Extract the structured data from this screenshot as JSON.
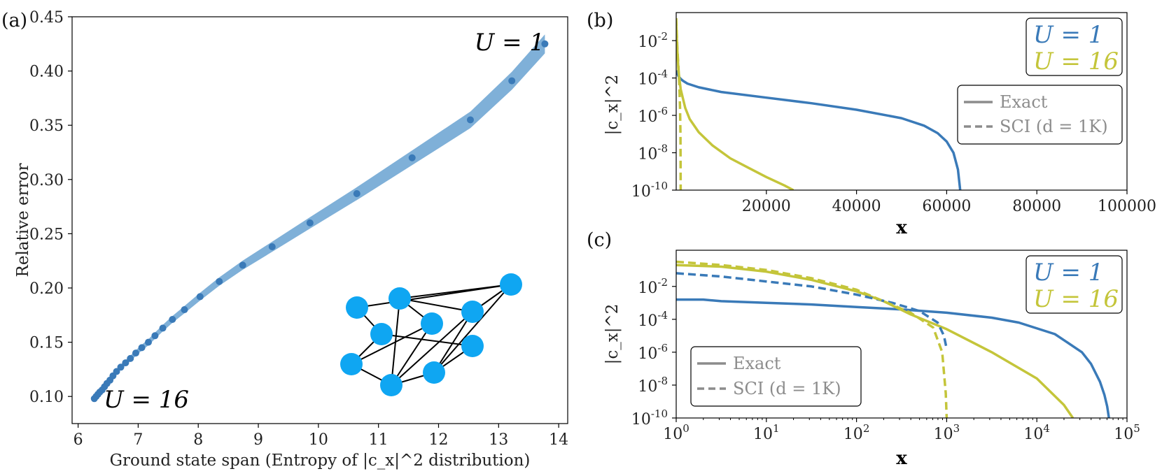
{
  "colors": {
    "u1": "#3a7ab8",
    "u16": "#c4c53a",
    "band": "#7fb0d8",
    "legend_gray": "#8c8c8c",
    "node": "#0fa6f2"
  },
  "chart_data": [
    {
      "panel": "(a)",
      "type": "scatter",
      "xlabel": "Ground state span (Entropy of |c_x|^2 distribution)",
      "ylabel": "Relative error",
      "xlim": [
        5.9,
        14.15
      ],
      "ylim": [
        0.075,
        0.45
      ],
      "xticks": [
        6,
        7,
        8,
        9,
        10,
        11,
        12,
        13,
        14
      ],
      "yticks": [
        0.1,
        0.15,
        0.2,
        0.25,
        0.3,
        0.35,
        0.4,
        0.45
      ],
      "ytick_labels": [
        "0.10",
        "0.15",
        "0.20",
        "0.25",
        "0.30",
        "0.35",
        "0.40",
        "0.45"
      ],
      "series": [
        {
          "name": "Relative error",
          "x": [
            6.27,
            6.3,
            6.33,
            6.36,
            6.4,
            6.44,
            6.48,
            6.53,
            6.58,
            6.64,
            6.71,
            6.79,
            6.87,
            6.96,
            7.06,
            7.17,
            7.28,
            7.41,
            7.57,
            7.77,
            8.03,
            8.35,
            8.74,
            9.23,
            9.86,
            10.64,
            11.56,
            12.53,
            13.22,
            13.77
          ],
          "y": [
            0.098,
            0.1,
            0.102,
            0.104,
            0.106,
            0.109,
            0.112,
            0.115,
            0.119,
            0.123,
            0.127,
            0.131,
            0.135,
            0.14,
            0.145,
            0.15,
            0.156,
            0.163,
            0.171,
            0.18,
            0.192,
            0.206,
            0.221,
            0.238,
            0.26,
            0.287,
            0.32,
            0.355,
            0.391,
            0.425
          ]
        }
      ],
      "annotations": {
        "u1": "U = 1",
        "u16": "U = 16"
      }
    },
    {
      "panel": "(b)",
      "type": "line",
      "xlabel": "x",
      "ylabel": "|c_x|^2",
      "xlim": [
        0,
        100000
      ],
      "ylim_log10": [
        -10,
        -0.5
      ],
      "xticks": [
        20000,
        40000,
        60000,
        80000,
        100000
      ],
      "xtick_labels": [
        "20000",
        "40000",
        "60000",
        "80000",
        "100000"
      ],
      "ytick_exponents": [
        -2,
        -4,
        -6,
        -8,
        -10
      ],
      "series": [
        {
          "name": "U = 1 Exact",
          "style": "solid",
          "x": [
            0,
            500,
            1000,
            1500,
            2500,
            5000,
            10000,
            20000,
            30000,
            40000,
            50000,
            55000,
            58000,
            60000,
            61500,
            62500,
            63000
          ],
          "log10y": [
            -3.6,
            -3.9,
            -4.05,
            -4.15,
            -4.3,
            -4.5,
            -4.75,
            -5.05,
            -5.35,
            -5.7,
            -6.15,
            -6.55,
            -6.95,
            -7.4,
            -8.0,
            -8.9,
            -10
          ]
        },
        {
          "name": "U = 16 Exact",
          "style": "solid",
          "x": [
            0,
            200,
            500,
            1000,
            2000,
            3000,
            5000,
            8000,
            12000,
            16000,
            20000,
            24000,
            26000
          ],
          "log10y": [
            -1.0,
            -2.3,
            -3.6,
            -4.6,
            -5.6,
            -6.2,
            -6.9,
            -7.6,
            -8.3,
            -8.8,
            -9.3,
            -9.75,
            -10
          ]
        },
        {
          "name": "U = 16 SCI (d = 1K)",
          "style": "dashed",
          "x": [
            0,
            150,
            300,
            500,
            700,
            850,
            950,
            1000
          ],
          "log10y": [
            -0.8,
            -1.8,
            -2.6,
            -3.4,
            -4.4,
            -5.6,
            -7.0,
            -10
          ]
        }
      ],
      "legend_u": [
        "U = 1",
        "U = 16"
      ],
      "legend_style": [
        "Exact",
        "SCI (d = 1K)"
      ]
    },
    {
      "panel": "(c)",
      "type": "line",
      "xscale": "log",
      "xlabel": "x",
      "ylabel": "|c_x|^2",
      "xlim_log10": [
        0,
        5
      ],
      "ylim_log10": [
        -10,
        0.2
      ],
      "xtick_exponents": [
        0,
        1,
        2,
        3,
        4,
        5
      ],
      "ytick_exponents": [
        -2,
        -4,
        -6,
        -8,
        -10
      ],
      "series": [
        {
          "name": "U = 1 Exact",
          "style": "solid",
          "lx": [
            0,
            0.3,
            0.5,
            1,
            1.5,
            2,
            2.5,
            3,
            3.5,
            3.8,
            4.2,
            4.5,
            4.6,
            4.7,
            4.75,
            4.78,
            4.8
          ],
          "ly": [
            -2.8,
            -2.8,
            -2.9,
            -3.0,
            -3.1,
            -3.25,
            -3.4,
            -3.6,
            -3.9,
            -4.2,
            -4.9,
            -6.0,
            -6.7,
            -7.8,
            -8.6,
            -9.3,
            -10
          ]
        },
        {
          "name": "U = 16 Exact",
          "style": "solid",
          "lx": [
            0,
            0.5,
            1,
            1.5,
            2,
            2.3,
            2.6,
            3,
            3.5,
            4,
            4.3,
            4.4
          ],
          "ly": [
            -0.7,
            -0.8,
            -1.1,
            -1.6,
            -2.3,
            -2.9,
            -3.7,
            -4.6,
            -6.0,
            -7.6,
            -9.2,
            -10
          ]
        },
        {
          "name": "U = 1 SCI (d = 1K)",
          "style": "dashed",
          "lx": [
            0,
            0.5,
            1,
            1.5,
            2,
            2.4,
            2.7,
            2.9,
            2.97,
            3.0
          ],
          "ly": [
            -1.2,
            -1.4,
            -1.7,
            -2.0,
            -2.5,
            -3.0,
            -3.5,
            -4.2,
            -5.0,
            -5.8
          ]
        },
        {
          "name": "U = 16 SCI (d = 1K)",
          "style": "dashed",
          "lx": [
            0,
            0.5,
            1,
            1.5,
            2,
            2.3,
            2.6,
            2.85,
            2.95,
            2.99,
            3.0
          ],
          "ly": [
            -0.5,
            -0.7,
            -1.0,
            -1.5,
            -2.2,
            -2.9,
            -3.6,
            -4.5,
            -6.0,
            -8.5,
            -10
          ]
        }
      ],
      "legend_u": [
        "U = 1",
        "U = 16"
      ],
      "legend_style": [
        "Exact",
        "SCI (d = 1K)"
      ]
    }
  ]
}
